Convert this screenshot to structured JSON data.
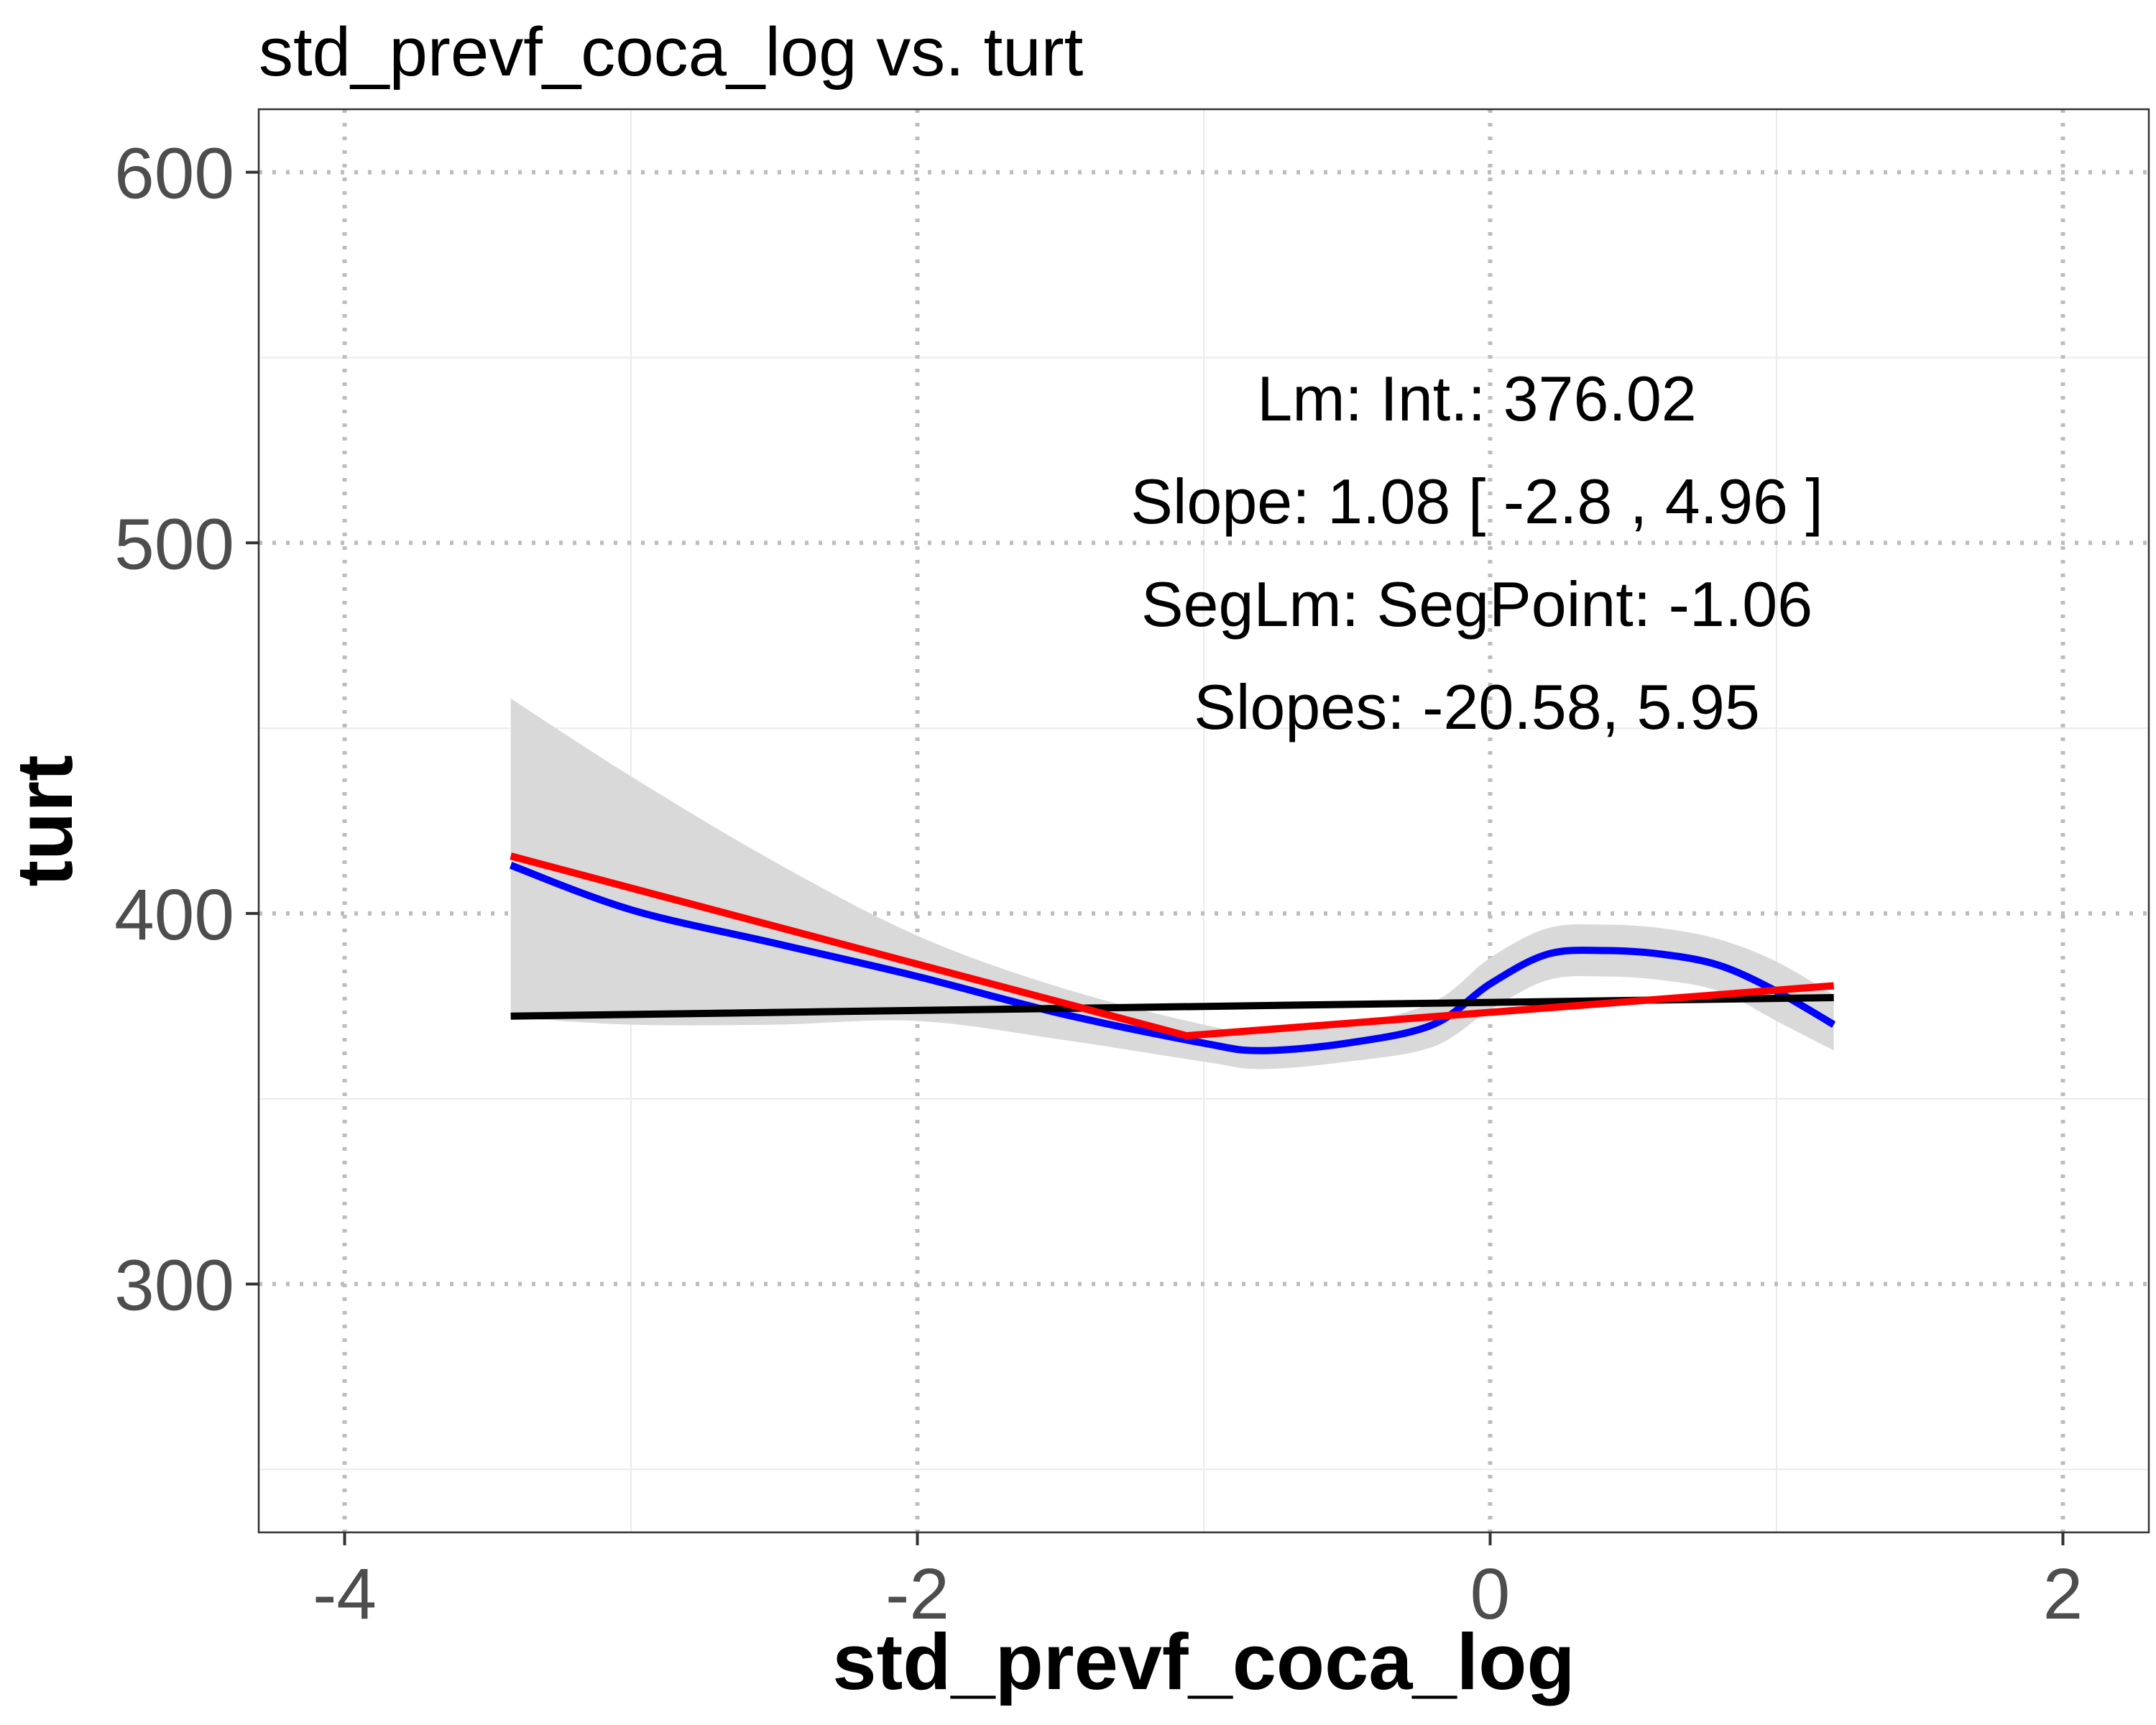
{
  "chart_data": {
    "type": "line",
    "title": "std_prevf_coca_log vs. turt",
    "xlabel": "std_prevf_coca_log",
    "ylabel": "turt",
    "xlim": [
      -4.3,
      2.3
    ],
    "ylim": [
      233,
      617
    ],
    "x_ticks": [
      -4,
      -2,
      0,
      2
    ],
    "y_ticks": [
      300,
      400,
      500,
      600
    ],
    "x_tick_labels": [
      "-4",
      "-2",
      "0",
      "2"
    ],
    "y_tick_labels": [
      "300",
      "400",
      "500",
      "600"
    ],
    "grid": true,
    "annotations": [
      "Lm: Int.: 376.02",
      "Slope: 1.08 [ -2.8 , 4.96 ]",
      "SegLm: SegPoint: -1.06",
      "Slopes: -20.58, 5.95"
    ],
    "series": [
      {
        "kind": "loess",
        "color": "#0000ff",
        "x": [
          -3.42,
          -3.0,
          -2.5,
          -2.0,
          -1.5,
          -1.0,
          -0.8,
          -0.5,
          -0.2,
          0.0,
          0.2,
          0.4,
          0.6,
          0.8,
          1.0,
          1.2
        ],
        "y": [
          413.0,
          401.0,
          392.0,
          383.0,
          373.0,
          365.0,
          363.0,
          365.0,
          370.0,
          381.0,
          389.0,
          390.0,
          389.0,
          386.0,
          379.0,
          370.0
        ]
      },
      {
        "kind": "confidence-band",
        "color": "#d9d9d9",
        "x": [
          -3.42,
          -3.0,
          -2.5,
          -2.0,
          -1.5,
          -1.0,
          -0.8,
          -0.5,
          -0.2,
          0.0,
          0.2,
          0.4,
          0.6,
          0.8,
          1.0,
          1.2
        ],
        "upper": [
          458.0,
          437.0,
          414.0,
          394.0,
          380.0,
          370.0,
          368.0,
          370.0,
          376.0,
          388.0,
          396.0,
          397.0,
          396.0,
          393.0,
          387.0,
          378.0
        ],
        "lower": [
          372.0,
          370.0,
          370.0,
          371.0,
          366.0,
          360.0,
          358.0,
          360.0,
          364.0,
          374.0,
          382.0,
          383.0,
          382.0,
          379.0,
          371.0,
          363.0
        ]
      },
      {
        "kind": "linear",
        "color": "#000000",
        "x": [
          -3.42,
          1.2
        ],
        "y": [
          372.3,
          377.3
        ]
      },
      {
        "kind": "segmented",
        "color": "#ff0000",
        "x": [
          -3.42,
          -1.06,
          1.2
        ],
        "y": [
          415.5,
          367.0,
          380.5
        ]
      }
    ]
  }
}
